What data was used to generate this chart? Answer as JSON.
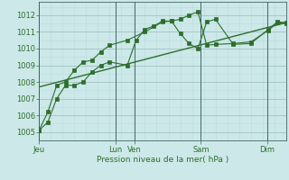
{
  "xlabel": "Pression niveau de la mer( hPa )",
  "background_color": "#cce8e8",
  "grid_color_major": "#99bbbb",
  "grid_color_minor": "#bbdddd",
  "line_color": "#2d6e2d",
  "ylim": [
    1004.5,
    1012.8
  ],
  "yticks": [
    1005,
    1006,
    1007,
    1008,
    1009,
    1010,
    1011,
    1012
  ],
  "day_positions": [
    0,
    52,
    65,
    110,
    155
  ],
  "day_labels": [
    "Jeu",
    "Lun",
    "Ven",
    "Sam",
    "Dim"
  ],
  "xlim": [
    0,
    168
  ],
  "series1_x": [
    0,
    6,
    12,
    18,
    24,
    30,
    36,
    42,
    48,
    60,
    66,
    72,
    78,
    84,
    90,
    96,
    102,
    108,
    114,
    120,
    132,
    144,
    156,
    162,
    168
  ],
  "series1_y": [
    1005.1,
    1005.6,
    1007.0,
    1007.8,
    1007.8,
    1008.0,
    1008.6,
    1009.0,
    1009.2,
    1009.0,
    1010.5,
    1011.15,
    1011.35,
    1011.65,
    1011.65,
    1010.9,
    1010.3,
    1010.0,
    1011.6,
    1011.75,
    1010.25,
    1010.3,
    1011.15,
    1011.6,
    1011.55
  ],
  "series2_x": [
    0,
    6,
    12,
    18,
    24,
    30,
    36,
    42,
    48,
    60,
    72,
    84,
    90,
    96,
    102,
    108,
    114,
    120,
    132,
    144,
    156,
    162,
    168
  ],
  "series2_y": [
    1005.1,
    1006.2,
    1007.8,
    1008.0,
    1008.7,
    1009.2,
    1009.3,
    1009.8,
    1010.2,
    1010.5,
    1011.0,
    1011.6,
    1011.65,
    1011.75,
    1012.0,
    1012.2,
    1010.2,
    1010.25,
    1010.3,
    1010.4,
    1011.1,
    1011.55,
    1011.5
  ],
  "trend_x": [
    0,
    168
  ],
  "trend_y": [
    1007.7,
    1011.55
  ],
  "vline_positions": [
    0,
    52,
    65,
    110,
    155
  ],
  "vline_color": "#446666"
}
